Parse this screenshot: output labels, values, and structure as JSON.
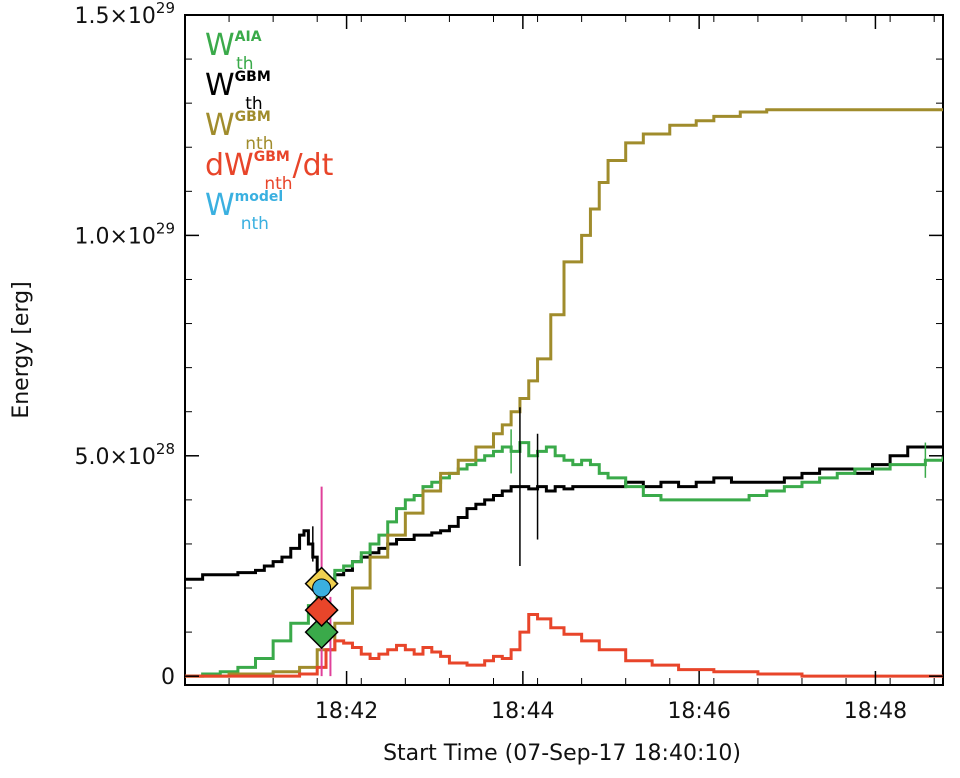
{
  "chart_data": {
    "type": "line",
    "xlabel": "Start Time (07-Sep-17 18:40:10)",
    "ylabel": "Energy [erg]",
    "xlim": [
      0,
      8.6
    ],
    "ylim": [
      -0.02,
      1.5
    ],
    "grid": false,
    "legend_position": "top-left",
    "x_ticks": [
      {
        "value": 1.8333,
        "label": "18:42"
      },
      {
        "value": 3.8333,
        "label": "18:44"
      },
      {
        "value": 5.8333,
        "label": "18:46"
      },
      {
        "value": 7.8333,
        "label": "18:48"
      }
    ],
    "y_ticks": [
      {
        "value": 0,
        "label": "0",
        "mant": "0",
        "exp": ""
      },
      {
        "value": 0.5,
        "label": "5.0×10^28",
        "mant": "5.0×10",
        "exp": "28"
      },
      {
        "value": 1.0,
        "label": "1.0×10^29",
        "mant": "1.0×10",
        "exp": "29"
      },
      {
        "value": 1.5,
        "label": "1.5×10^29",
        "mant": "1.5×10",
        "exp": "29"
      }
    ],
    "x_units": "minutes since 18:40:10",
    "y_units": "1e29 erg",
    "legend": [
      {
        "base": "W",
        "sup": "AIA",
        "sub": "th",
        "tail": "",
        "color": "#3aaa4a"
      },
      {
        "base": "W",
        "sup": "GBM",
        "sub": "th",
        "tail": "",
        "color": "#000000"
      },
      {
        "base": "W",
        "sup": "GBM",
        "sub": "nth",
        "tail": "",
        "color": "#a08c2c"
      },
      {
        "base": "dW",
        "sup": "GBM",
        "sub": "nth",
        "tail": "/dt",
        "color": "#e8452a"
      },
      {
        "base": "W",
        "sup": "model",
        "sub": "nth",
        "tail": "",
        "color": "#3ab0e0"
      }
    ],
    "series": [
      {
        "name": "W_th^GBM",
        "color": "#000000",
        "x": [
          0,
          0.2,
          0.4,
          0.6,
          0.8,
          0.9,
          1.0,
          1.1,
          1.2,
          1.3,
          1.35,
          1.4,
          1.45,
          1.5,
          1.55,
          1.6,
          1.7,
          1.8,
          1.9,
          2.0,
          2.1,
          2.2,
          2.3,
          2.4,
          2.5,
          2.6,
          2.7,
          2.8,
          2.9,
          3.0,
          3.1,
          3.2,
          3.3,
          3.4,
          3.5,
          3.6,
          3.7,
          3.8,
          3.9,
          4.0,
          4.1,
          4.2,
          4.3,
          4.4,
          4.5,
          4.6,
          4.8,
          5.0,
          5.2,
          5.4,
          5.6,
          5.8,
          6.0,
          6.2,
          6.4,
          6.6,
          6.8,
          7.0,
          7.2,
          7.4,
          7.6,
          7.8,
          8.0,
          8.2,
          8.4,
          8.6
        ],
        "y": [
          0.22,
          0.23,
          0.23,
          0.235,
          0.24,
          0.25,
          0.26,
          0.27,
          0.29,
          0.32,
          0.33,
          0.3,
          0.27,
          0.24,
          0.23,
          0.22,
          0.23,
          0.24,
          0.26,
          0.27,
          0.28,
          0.29,
          0.3,
          0.31,
          0.31,
          0.32,
          0.32,
          0.325,
          0.33,
          0.34,
          0.36,
          0.38,
          0.39,
          0.4,
          0.41,
          0.42,
          0.43,
          0.43,
          0.425,
          0.43,
          0.42,
          0.43,
          0.425,
          0.43,
          0.43,
          0.43,
          0.43,
          0.44,
          0.43,
          0.44,
          0.43,
          0.44,
          0.45,
          0.44,
          0.44,
          0.44,
          0.45,
          0.46,
          0.47,
          0.47,
          0.46,
          0.48,
          0.5,
          0.52,
          0.52,
          0.52
        ]
      },
      {
        "name": "W_th^AIA",
        "color": "#3aaa4a",
        "x": [
          0,
          0.2,
          0.4,
          0.6,
          0.8,
          1.0,
          1.2,
          1.4,
          1.5,
          1.6,
          1.7,
          1.8,
          1.9,
          2.0,
          2.1,
          2.2,
          2.3,
          2.4,
          2.5,
          2.6,
          2.7,
          2.8,
          2.9,
          3.0,
          3.1,
          3.2,
          3.3,
          3.4,
          3.5,
          3.6,
          3.7,
          3.8,
          3.9,
          4.0,
          4.1,
          4.2,
          4.3,
          4.4,
          4.5,
          4.6,
          4.7,
          4.8,
          5.0,
          5.2,
          5.4,
          5.6,
          5.8,
          6.0,
          6.2,
          6.4,
          6.6,
          6.8,
          7.0,
          7.2,
          7.4,
          7.6,
          7.8,
          8.0,
          8.2,
          8.4,
          8.6
        ],
        "y": [
          0.0,
          0.005,
          0.01,
          0.02,
          0.04,
          0.08,
          0.12,
          0.16,
          0.2,
          0.22,
          0.24,
          0.25,
          0.26,
          0.28,
          0.3,
          0.32,
          0.35,
          0.38,
          0.4,
          0.41,
          0.43,
          0.44,
          0.45,
          0.46,
          0.47,
          0.48,
          0.49,
          0.5,
          0.51,
          0.52,
          0.51,
          0.53,
          0.5,
          0.51,
          0.52,
          0.5,
          0.49,
          0.48,
          0.49,
          0.48,
          0.46,
          0.45,
          0.43,
          0.41,
          0.4,
          0.4,
          0.4,
          0.4,
          0.4,
          0.41,
          0.42,
          0.43,
          0.44,
          0.45,
          0.46,
          0.47,
          0.47,
          0.48,
          0.48,
          0.49,
          0.5
        ]
      },
      {
        "name": "W_nth^GBM",
        "color": "#a08c2c",
        "x": [
          0,
          0.5,
          1.0,
          1.3,
          1.5,
          1.7,
          1.9,
          2.1,
          2.3,
          2.5,
          2.7,
          2.9,
          3.1,
          3.3,
          3.5,
          3.6,
          3.7,
          3.8,
          3.9,
          4.0,
          4.15,
          4.3,
          4.5,
          4.6,
          4.7,
          4.8,
          5.0,
          5.2,
          5.5,
          5.8,
          6.0,
          6.3,
          6.6,
          7.0,
          7.5,
          8.0,
          8.6
        ],
        "y": [
          0.0,
          0.005,
          0.01,
          0.02,
          0.06,
          0.12,
          0.2,
          0.27,
          0.32,
          0.37,
          0.42,
          0.46,
          0.49,
          0.52,
          0.55,
          0.57,
          0.6,
          0.63,
          0.67,
          0.72,
          0.82,
          0.94,
          1.0,
          1.06,
          1.12,
          1.17,
          1.21,
          1.23,
          1.25,
          1.26,
          1.27,
          1.28,
          1.285,
          1.285,
          1.285,
          1.285,
          1.285
        ]
      },
      {
        "name": "dW_nth^GBM/dt",
        "color": "#e8452a",
        "x": [
          0,
          0.5,
          1.0,
          1.3,
          1.5,
          1.6,
          1.7,
          1.8,
          1.9,
          2.0,
          2.1,
          2.2,
          2.3,
          2.4,
          2.5,
          2.6,
          2.7,
          2.8,
          2.9,
          3.0,
          3.2,
          3.4,
          3.5,
          3.6,
          3.7,
          3.8,
          3.9,
          4.0,
          4.15,
          4.3,
          4.5,
          4.7,
          5.0,
          5.3,
          5.6,
          6.0,
          6.5,
          7.0,
          7.5,
          8.0,
          8.6
        ],
        "y": [
          0.0,
          0.0,
          0.0,
          0.005,
          0.02,
          0.06,
          0.08,
          0.075,
          0.065,
          0.05,
          0.04,
          0.05,
          0.06,
          0.07,
          0.06,
          0.05,
          0.065,
          0.055,
          0.045,
          0.03,
          0.025,
          0.035,
          0.045,
          0.04,
          0.06,
          0.1,
          0.14,
          0.13,
          0.11,
          0.095,
          0.08,
          0.06,
          0.035,
          0.025,
          0.015,
          0.01,
          0.005,
          0.0,
          0.0,
          0.0,
          0.0
        ]
      }
    ],
    "error_bars": [
      {
        "x": 1.45,
        "y": 0.3,
        "err": 0.04,
        "color": "#000000"
      },
      {
        "x": 3.8,
        "y": 0.43,
        "err": 0.18,
        "color": "#000000"
      },
      {
        "x": 4.0,
        "y": 0.43,
        "err": 0.12,
        "color": "#000000"
      },
      {
        "x": 3.7,
        "y": 0.51,
        "err": 0.05,
        "color": "#3aaa4a"
      },
      {
        "x": 8.4,
        "y": 0.49,
        "err": 0.04,
        "color": "#3aaa4a"
      }
    ],
    "vertical_marker": {
      "x": 1.55,
      "y_top": 0.43,
      "color": "#e0409a"
    },
    "vertical_marker_2": {
      "x": 1.65,
      "y_top": 0.18,
      "color": "#e0409a"
    },
    "markers": [
      {
        "shape": "diamond",
        "x": 1.55,
        "y": 0.1,
        "color": "#3aaa4a"
      },
      {
        "shape": "diamond",
        "x": 1.55,
        "y": 0.15,
        "color": "#e8452a"
      },
      {
        "shape": "diamond",
        "x": 1.55,
        "y": 0.21,
        "color": "#f0d050"
      },
      {
        "shape": "circle",
        "x": 1.55,
        "y": 0.2,
        "color": "#3ab0e0"
      }
    ]
  }
}
